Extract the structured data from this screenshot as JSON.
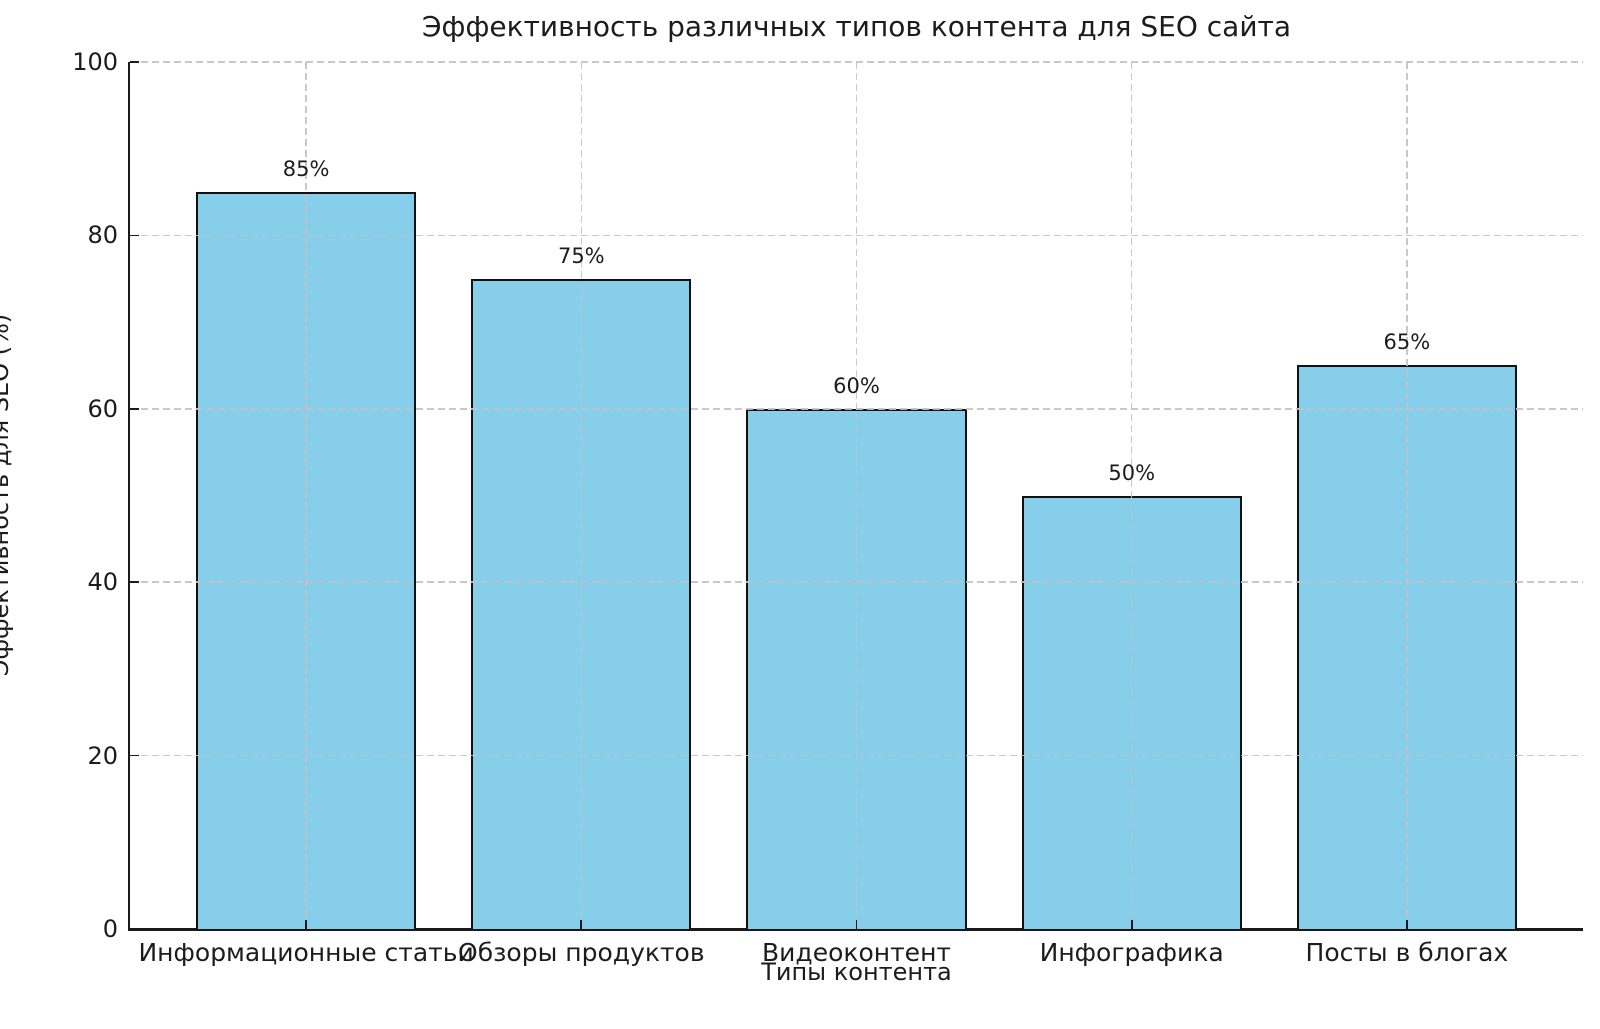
{
  "chart_data": {
    "type": "bar",
    "title": "Эффективность различных типов контента для SEO сайта",
    "xlabel": "Типы контента",
    "ylabel": "Эффективность для SEO (%)",
    "categories": [
      "Информационные статьи",
      "Обзоры продуктов",
      "Видеоконтент",
      "Инфографика",
      "Посты в блогах"
    ],
    "values": [
      85,
      75,
      60,
      50,
      65
    ],
    "bar_labels": [
      "85%",
      "75%",
      "60%",
      "50%",
      "65%"
    ],
    "ylim": [
      0,
      100
    ],
    "yticks": [
      0,
      20,
      40,
      60,
      80,
      100
    ],
    "grid": true,
    "grid_style": "dashed",
    "legend": "none",
    "colors": {
      "bar_fill": "#87CEEB",
      "bar_edge": "#111111",
      "grid": "#c3c3c3",
      "text": "#1c1c1c",
      "background": "#ffffff"
    }
  }
}
